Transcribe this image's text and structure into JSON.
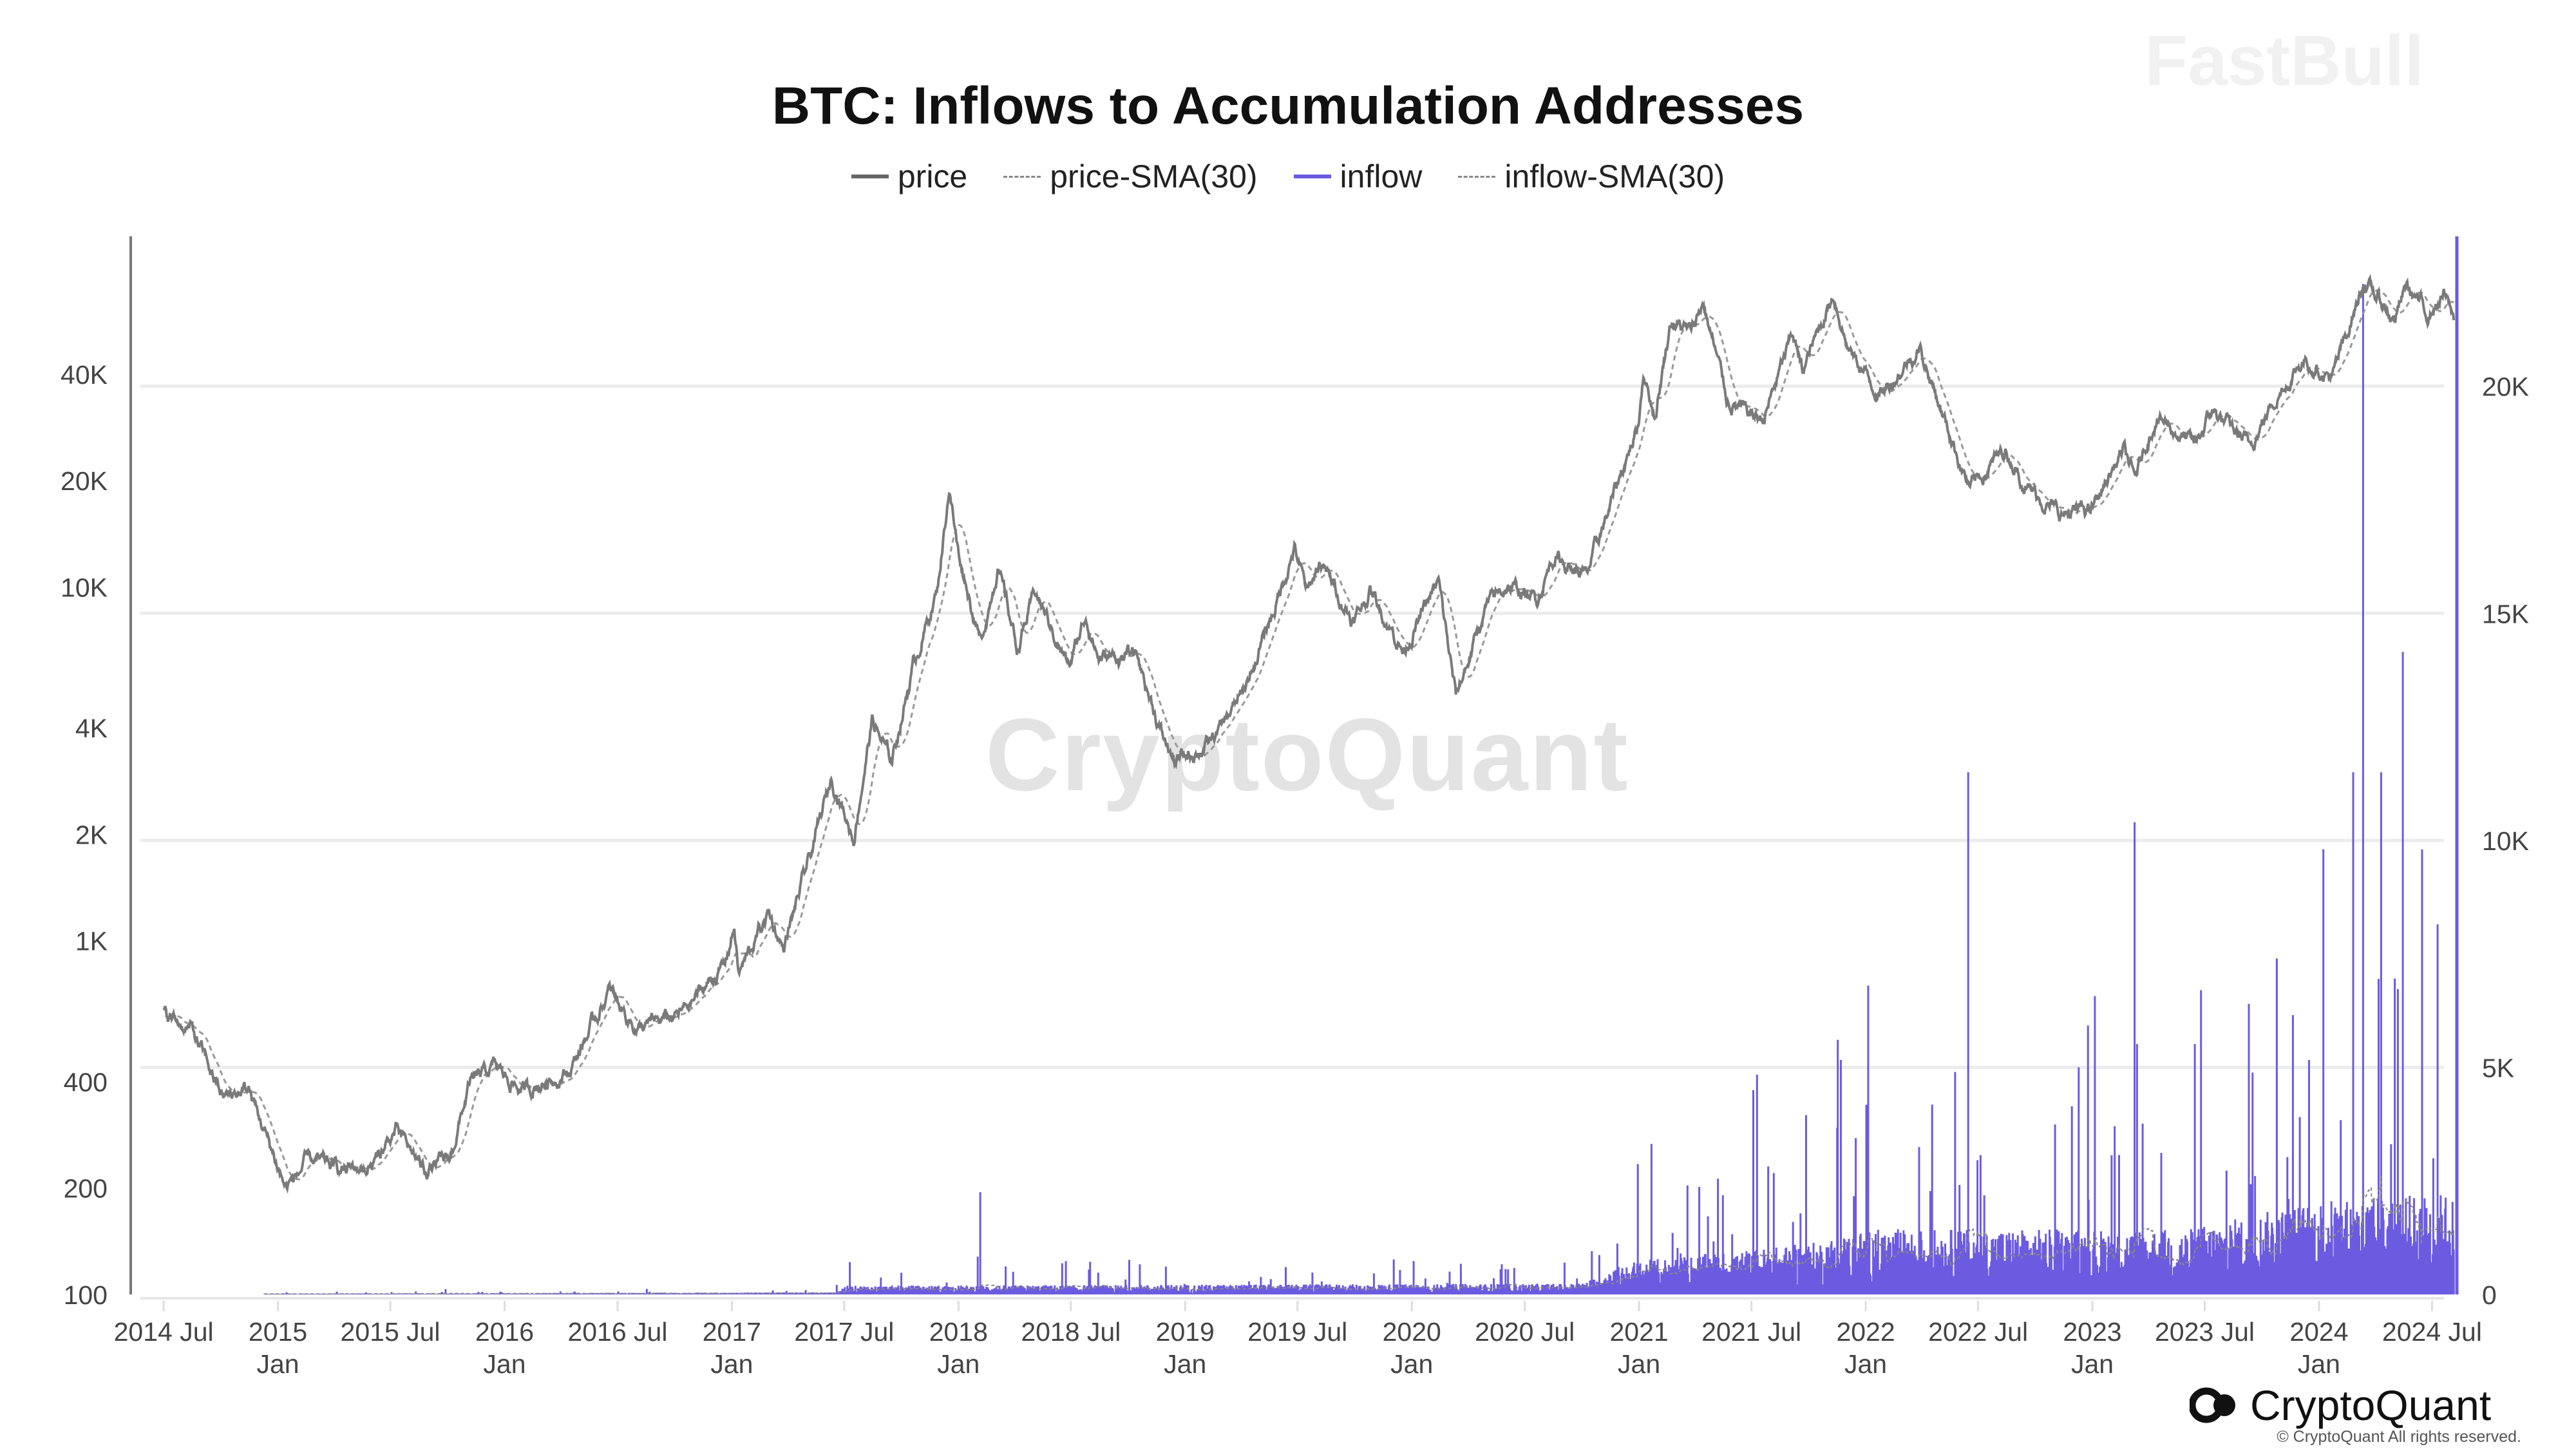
{
  "chart_data": {
    "type": "line",
    "title": "BTC: Inflows to Accumulation Addresses",
    "legend": [
      {
        "name": "price",
        "style": "solid",
        "color": "#777777"
      },
      {
        "name": "price-SMA(30)",
        "style": "dashed",
        "color": "#999999"
      },
      {
        "name": "inflow",
        "style": "solid",
        "color": "#6b5be0"
      },
      {
        "name": "inflow-SMA(30)",
        "style": "dashed",
        "color": "#999999"
      }
    ],
    "legend_position": "top",
    "xlim": [
      "2014-05-09",
      "2024-08-10"
    ],
    "x_ticks": [
      {
        "date": "2014-07-01",
        "label": "2014 Jul",
        "sub": ""
      },
      {
        "date": "2015-01-01",
        "label": "2015",
        "sub": "Jan"
      },
      {
        "date": "2015-07-01",
        "label": "2015 Jul",
        "sub": ""
      },
      {
        "date": "2016-01-01",
        "label": "2016",
        "sub": "Jan"
      },
      {
        "date": "2016-07-01",
        "label": "2016 Jul",
        "sub": ""
      },
      {
        "date": "2017-01-01",
        "label": "2017",
        "sub": "Jan"
      },
      {
        "date": "2017-07-01",
        "label": "2017 Jul",
        "sub": ""
      },
      {
        "date": "2018-01-01",
        "label": "2018",
        "sub": "Jan"
      },
      {
        "date": "2018-07-01",
        "label": "2018 Jul",
        "sub": ""
      },
      {
        "date": "2019-01-01",
        "label": "2019",
        "sub": "Jan"
      },
      {
        "date": "2019-07-01",
        "label": "2019 Jul",
        "sub": ""
      },
      {
        "date": "2020-01-01",
        "label": "2020",
        "sub": "Jan"
      },
      {
        "date": "2020-07-01",
        "label": "2020 Jul",
        "sub": ""
      },
      {
        "date": "2021-01-01",
        "label": "2021",
        "sub": "Jan"
      },
      {
        "date": "2021-07-01",
        "label": "2021 Jul",
        "sub": ""
      },
      {
        "date": "2022-01-01",
        "label": "2022",
        "sub": "Jan"
      },
      {
        "date": "2022-07-01",
        "label": "2022 Jul",
        "sub": ""
      },
      {
        "date": "2023-01-01",
        "label": "2023",
        "sub": "Jan"
      },
      {
        "date": "2023-07-01",
        "label": "2023 Jul",
        "sub": ""
      },
      {
        "date": "2024-01-01",
        "label": "2024",
        "sub": "Jan"
      },
      {
        "date": "2024-07-01",
        "label": "2024 Jul",
        "sub": ""
      }
    ],
    "y_left": {
      "scale": "log",
      "range": [
        100,
        98000
      ],
      "ticks": [
        {
          "v": 100,
          "label": "100"
        },
        {
          "v": 200,
          "label": "200"
        },
        {
          "v": 400,
          "label": "400"
        },
        {
          "v": 1000,
          "label": "1K"
        },
        {
          "v": 2000,
          "label": "2K"
        },
        {
          "v": 4000,
          "label": "4K"
        },
        {
          "v": 10000,
          "label": "10K"
        },
        {
          "v": 20000,
          "label": "20K"
        },
        {
          "v": 40000,
          "label": "40K"
        }
      ]
    },
    "y_right": {
      "scale": "linear",
      "range": [
        0,
        23300
      ],
      "ticks": [
        {
          "v": 0,
          "label": "0"
        },
        {
          "v": 5000,
          "label": "5K"
        },
        {
          "v": 10000,
          "label": "10K"
        },
        {
          "v": 15000,
          "label": "15K"
        },
        {
          "v": 20000,
          "label": "20K"
        }
      ]
    },
    "grid": true,
    "price": [
      [
        "2014-07-01",
        620
      ],
      [
        "2014-08-15",
        560
      ],
      [
        "2014-10-05",
        360
      ],
      [
        "2014-11-15",
        380
      ],
      [
        "2015-01-14",
        200
      ],
      [
        "2015-02-20",
        240
      ],
      [
        "2015-04-15",
        225
      ],
      [
        "2015-06-01",
        230
      ],
      [
        "2015-07-10",
        290
      ],
      [
        "2015-08-25",
        225
      ],
      [
        "2015-10-05",
        240
      ],
      [
        "2015-11-05",
        390
      ],
      [
        "2015-12-15",
        440
      ],
      [
        "2016-02-01",
        375
      ],
      [
        "2016-04-15",
        430
      ],
      [
        "2016-06-17",
        720
      ],
      [
        "2016-08-03",
        560
      ],
      [
        "2016-10-10",
        620
      ],
      [
        "2016-12-20",
        850
      ],
      [
        "2017-01-05",
        1100
      ],
      [
        "2017-01-12",
        800
      ],
      [
        "2017-03-01",
        1200
      ],
      [
        "2017-03-25",
        950
      ],
      [
        "2017-05-10",
        1800
      ],
      [
        "2017-06-11",
        2900
      ],
      [
        "2017-07-16",
        1950
      ],
      [
        "2017-08-15",
        4200
      ],
      [
        "2017-09-15",
        3200
      ],
      [
        "2017-10-20",
        6000
      ],
      [
        "2017-11-28",
        9800
      ],
      [
        "2017-12-17",
        19300
      ],
      [
        "2017-12-30",
        13000
      ],
      [
        "2018-02-06",
        6900
      ],
      [
        "2018-03-05",
        11500
      ],
      [
        "2018-04-06",
        6700
      ],
      [
        "2018-05-05",
        9700
      ],
      [
        "2018-06-28",
        5900
      ],
      [
        "2018-07-25",
        8300
      ],
      [
        "2018-08-15",
        6300
      ],
      [
        "2018-10-15",
        6400
      ],
      [
        "2018-11-25",
        3800
      ],
      [
        "2018-12-15",
        3200
      ],
      [
        "2019-02-10",
        3600
      ],
      [
        "2019-04-05",
        5000
      ],
      [
        "2019-05-25",
        8700
      ],
      [
        "2019-06-26",
        12900
      ],
      [
        "2019-07-17",
        9500
      ],
      [
        "2019-08-06",
        11800
      ],
      [
        "2019-09-30",
        8000
      ],
      [
        "2019-10-26",
        9800
      ],
      [
        "2019-12-18",
        6600
      ],
      [
        "2020-02-13",
        10300
      ],
      [
        "2020-03-12",
        4900
      ],
      [
        "2020-04-30",
        8800
      ],
      [
        "2020-06-02",
        10100
      ],
      [
        "2020-07-20",
        9200
      ],
      [
        "2020-08-17",
        12300
      ],
      [
        "2020-10-08",
        10700
      ],
      [
        "2020-11-25",
        19000
      ],
      [
        "2020-12-31",
        29000
      ],
      [
        "2021-01-08",
        41000
      ],
      [
        "2021-01-27",
        30500
      ],
      [
        "2021-02-21",
        57000
      ],
      [
        "2021-03-25",
        52000
      ],
      [
        "2021-04-14",
        64000
      ],
      [
        "2021-05-23",
        34000
      ],
      [
        "2021-06-22",
        31000
      ],
      [
        "2021-07-20",
        29800
      ],
      [
        "2021-09-06",
        52000
      ],
      [
        "2021-09-21",
        40500
      ],
      [
        "2021-11-10",
        68000
      ],
      [
        "2021-12-04",
        47000
      ],
      [
        "2022-01-24",
        35000
      ],
      [
        "2022-03-29",
        47500
      ],
      [
        "2022-05-12",
        28500
      ],
      [
        "2022-06-18",
        19000
      ],
      [
        "2022-08-14",
        24500
      ],
      [
        "2022-09-20",
        19000
      ],
      [
        "2022-11-09",
        16000
      ],
      [
        "2022-12-30",
        16500
      ],
      [
        "2023-02-20",
        24500
      ],
      [
        "2023-03-10",
        20000
      ],
      [
        "2023-04-14",
        30500
      ],
      [
        "2023-06-15",
        25000
      ],
      [
        "2023-07-13",
        31500
      ],
      [
        "2023-09-11",
        25000
      ],
      [
        "2023-10-24",
        34500
      ],
      [
        "2023-12-08",
        44000
      ],
      [
        "2024-01-23",
        39000
      ],
      [
        "2024-03-13",
        73000
      ],
      [
        "2024-05-01",
        57000
      ],
      [
        "2024-05-21",
        71000
      ],
      [
        "2024-06-24",
        59000
      ],
      [
        "2024-07-20",
        67000
      ],
      [
        "2024-08-05",
        57000
      ]
    ],
    "inflow_typical": [
      [
        "2014-12-10",
        10
      ],
      [
        "2017-06-15",
        30
      ],
      [
        "2017-07-01",
        120
      ],
      [
        "2020-10-01",
        150
      ],
      [
        "2020-12-15",
        450
      ],
      [
        "2021-10-01",
        700
      ],
      [
        "2022-01-01",
        900
      ],
      [
        "2023-06-01",
        900
      ],
      [
        "2024-01-01",
        1300
      ],
      [
        "2024-08-05",
        1400
      ]
    ],
    "inflow_spikes": [
      [
        "2018-02-05",
        2250
      ],
      [
        "2020-12-30",
        2870
      ],
      [
        "2021-03-20",
        2400
      ],
      [
        "2021-07-10",
        4840
      ],
      [
        "2022-01-05",
        6800
      ],
      [
        "2022-05-25",
        4900
      ],
      [
        "2022-06-15",
        11500
      ],
      [
        "2022-12-10",
        5000
      ],
      [
        "2023-03-10",
        10400
      ],
      [
        "2023-06-25",
        6700
      ],
      [
        "2023-09-10",
        6400
      ],
      [
        "2023-10-25",
        7400
      ],
      [
        "2023-11-20",
        6150
      ],
      [
        "2024-02-25",
        11500
      ],
      [
        "2024-03-12",
        22250
      ],
      [
        "2024-04-10",
        11500
      ],
      [
        "2024-05-15",
        14150
      ],
      [
        "2024-06-15",
        9800
      ],
      [
        "2024-07-10",
        8150
      ]
    ]
  },
  "watermark": "CryptoQuant",
  "watermark2": "FastBull",
  "logo": "CryptoQuant",
  "copyright": "© CryptoQuant All rights reserved."
}
